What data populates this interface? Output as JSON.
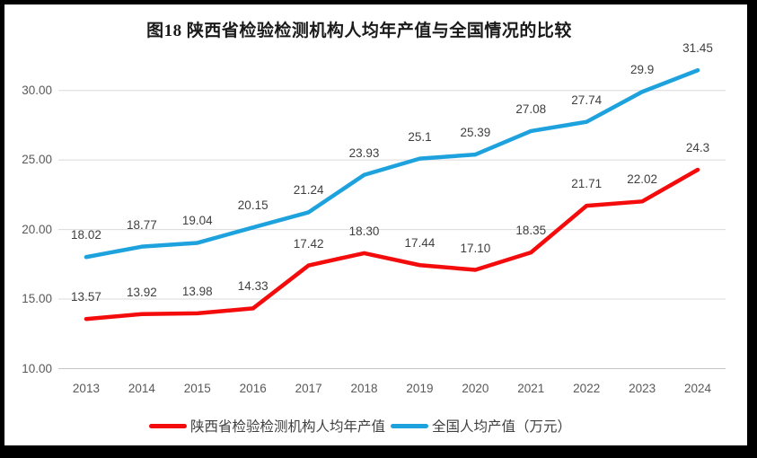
{
  "chart_data": {
    "type": "line",
    "title": "图18 陕西省检验检测机构人均年产值与全国情况的比较",
    "categories": [
      "2013",
      "2014",
      "2015",
      "2016",
      "2017",
      "2018",
      "2019",
      "2020",
      "2021",
      "2022",
      "2023",
      "2024"
    ],
    "series": [
      {
        "name": "陕西省检验检测机构人均年产值",
        "color": "#f40b0b",
        "values": [
          13.57,
          13.92,
          13.98,
          14.33,
          17.42,
          18.3,
          17.44,
          17.1,
          18.35,
          21.71,
          22.02,
          24.3
        ],
        "labels": [
          "13.57",
          "13.92",
          "13.98",
          "14.33",
          "17.42",
          "18.30",
          "17.44",
          "17.10",
          "18.35",
          "21.71",
          "22.02",
          "24.3"
        ]
      },
      {
        "name": "全国人均产值（万元）",
        "color": "#1ea2de",
        "values": [
          18.02,
          18.77,
          19.04,
          20.15,
          21.24,
          23.93,
          25.1,
          25.39,
          27.08,
          27.74,
          29.9,
          31.45
        ],
        "labels": [
          "18.02",
          "18.77",
          "19.04",
          "20.15",
          "21.24",
          "23.93",
          "25.1",
          "25.39",
          "27.08",
          "27.74",
          "29.9",
          "31.45"
        ]
      }
    ],
    "y_axis": {
      "ticks": [
        "10.00",
        "15.00",
        "20.00",
        "25.00",
        "30.00"
      ],
      "tick_values": [
        10,
        15,
        20,
        25,
        30
      ],
      "min": 10,
      "max": 30
    },
    "xlabel": "",
    "ylabel": "",
    "grid": true,
    "legend_position": "bottom",
    "colors": {
      "gridline": "#d9d9d9",
      "axis_line": "#c6c6c6",
      "tick_text": "#595959",
      "data_label_text": "#3f3f3f",
      "frame": "#000000",
      "background": "#ffffff"
    }
  }
}
